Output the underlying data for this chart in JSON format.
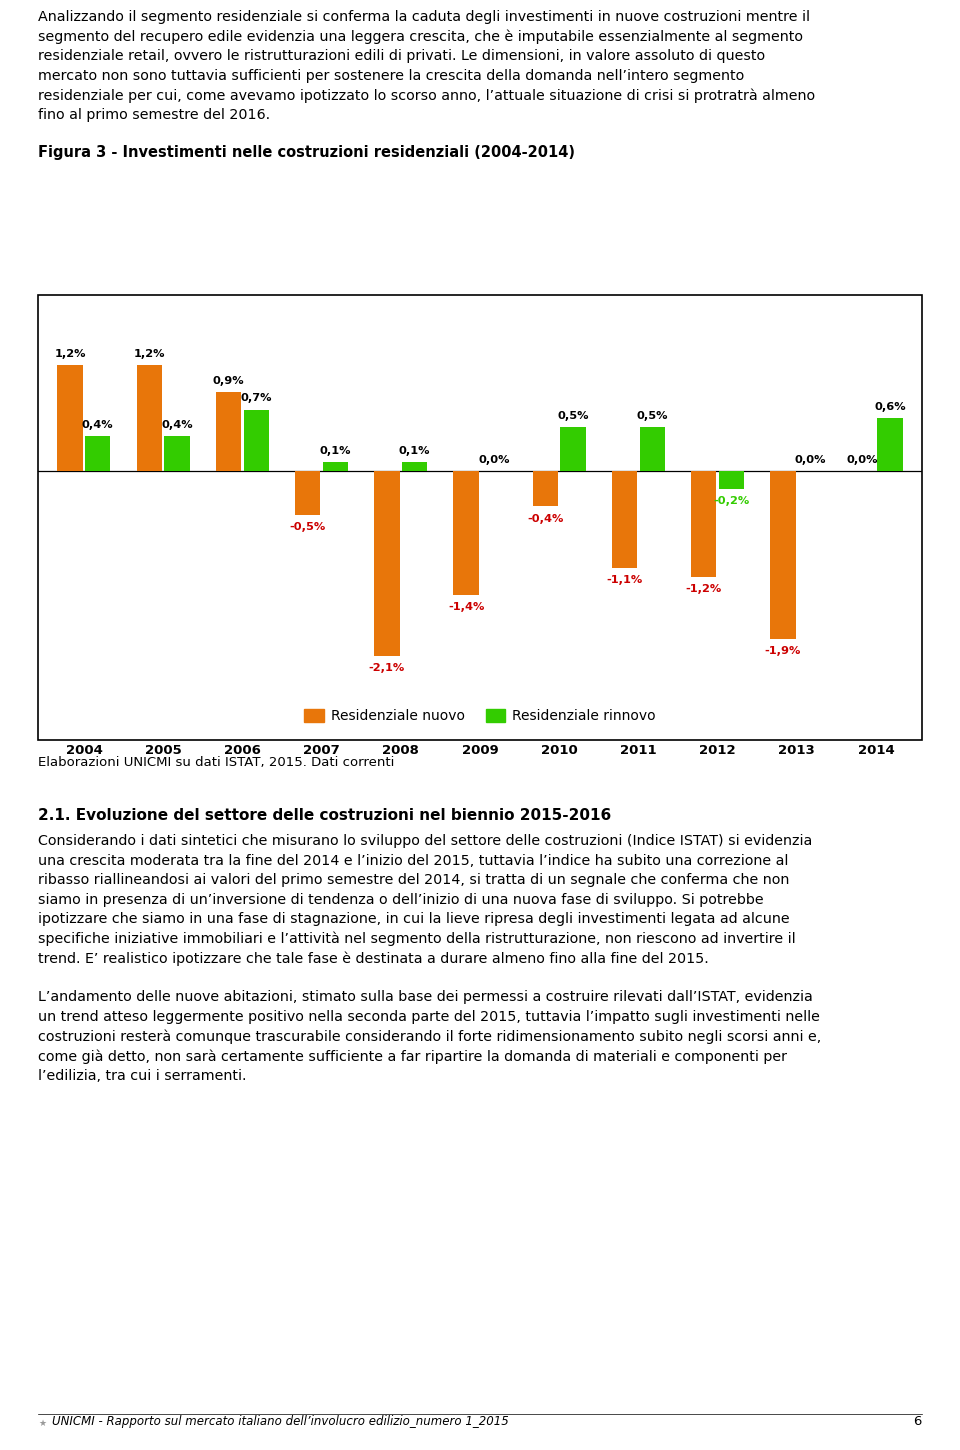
{
  "para1": "Analizzando il segmento residenziale si conferma la caduta degli investimenti in nuove costruzioni mentre il segmento del recupero edile evidenzia una leggera crescita, che è imputabile essenzialmente al segmento residenziale retail, ovvero le ristrutturazioni edili di privati. Le dimensioni, in valore assoluto di questo mercato non sono tuttavia sufficienti per sostenere la crescita della domanda nell’intero segmento residenziale per cui, come avevamo ipotizzato lo scorso anno, l’attuale situazione di crisi si protratrà almeno fino al primo semestre del 2016.",
  "figure_title": "Figura 3 - Investimenti nelle costruzioni residenziali (2004-2014)",
  "years": [
    "2004",
    "2005",
    "2006",
    "2007",
    "2008",
    "2009",
    "2010",
    "2011",
    "2012",
    "2013",
    "2014"
  ],
  "nuovo": [
    1.2,
    1.2,
    0.9,
    -0.5,
    -2.1,
    -1.4,
    -0.4,
    -1.1,
    -1.2,
    -1.9,
    0.0
  ],
  "rinnovo": [
    0.4,
    0.4,
    0.7,
    0.1,
    0.1,
    0.0,
    0.5,
    0.5,
    -0.2,
    0.0,
    0.6
  ],
  "nuovo_labels": [
    "1,2%",
    "1,2%",
    "0,9%",
    "-0,5%",
    "-2,1%",
    "-1,4%",
    "-0,4%",
    "-1,1%",
    "-1,2%",
    "-1,9%",
    "0,0%"
  ],
  "rinnovo_labels": [
    "0,4%",
    "0,4%",
    "0,7%",
    "0,1%",
    "0,1%",
    "0,0%",
    "0,5%",
    "0,5%",
    "-0,2%",
    "0,0%",
    "0,6%"
  ],
  "color_nuovo": "#E8760A",
  "color_rinnovo": "#33CC00",
  "color_neg_nuovo": "#CC0000",
  "color_neg_rinnovo": "#33CC00",
  "elaborazioni_note": "Elaborazioni UNICMI su dati ISTAT, 2015. Dati correnti",
  "section_title": "2.1. Evoluzione del settore delle costruzioni nel biennio 2015-2016",
  "para2": "Considerando i dati sintetici che misurano lo sviluppo del settore delle costruzioni (Indice ISTAT) si evidenzia una crescita moderata tra la fine del 2014 e l’inizio del 2015, tuttavia l’indice ha subito una correzione al ribasso riallineandosi ai valori del primo semestre del 2014, si tratta di un segnale che conferma che non siamo in presenza di un’inversione di tendenza o dell’inizio di una nuova fase di sviluppo. Si potrebbe ipotizzare che siamo in una fase di stagnazione, in cui la lieve ripresa degli investimenti legata ad alcune specifiche iniziative immobiliari e l’attività nel segmento della ristrutturazione, non riescono ad invertire il trend. E’ realistico ipotizzare che tale fase è destinata a durare almeno fino alla fine del 2015.",
  "para3": "L’andamento delle nuove abitazioni, stimato sulla base dei permessi a costruire rilevati dall’ISTAT, evidenzia un trend atteso leggermente positivo nella seconda parte del 2015, tuttavia l’impatto sugli investimenti nelle costruzioni resterà comunque trascurabile considerando il forte ridimensionamento subito negli scorsi anni e, come già detto, non sarà certamente sufficiente a far ripartire la domanda di materiali e componenti per l’edilizia, tra cui i serramenti.",
  "footer": "UNICMI - Rapporto sul mercato italiano dell’involucro edilizio_numero 1_2015",
  "page_num": "6",
  "background": "#ffffff",
  "para1_lines": [
    "Analizzando il segmento residenziale si conferma la caduta degli investimenti in nuove costruzioni mentre il",
    "segmento del recupero edile evidenzia una leggera crescita, che è imputabile essenzialmente al segmento",
    "residenziale retail, ovvero le ristrutturazioni edili di privati. Le dimensioni, in valore assoluto di questo",
    "mercato non sono tuttavia sufficienti per sostenere la crescita della domanda nell’intero segmento",
    "residenziale per cui, come avevamo ipotizzato lo scorso anno, l’attuale situazione di crisi si protratrà almeno",
    "fino al primo semestre del 2016."
  ],
  "para2_lines": [
    "Considerando i dati sintetici che misurano lo sviluppo del settore delle costruzioni (Indice ISTAT) si evidenzia",
    "una crescita moderata tra la fine del 2014 e l’inizio del 2015, tuttavia l’indice ha subito una correzione al",
    "ribasso riallineandosi ai valori del primo semestre del 2014, si tratta di un segnale che conferma che non",
    "siamo in presenza di un’inversione di tendenza o dell’inizio di una nuova fase di sviluppo. Si potrebbe",
    "ipotizzare che siamo in una fase di stagnazione, in cui la lieve ripresa degli investimenti legata ad alcune",
    "specifiche iniziative immobiliari e l’attività nel segmento della ristrutturazione, non riescono ad invertire il",
    "trend. E’ realistico ipotizzare che tale fase è destinata a durare almeno fino alla fine del 2015."
  ],
  "para3_lines": [
    "L’andamento delle nuove abitazioni, stimato sulla base dei permessi a costruire rilevati dall’ISTAT, evidenzia",
    "un trend atteso leggermente positivo nella seconda parte del 2015, tuttavia l’impatto sugli investimenti nelle",
    "costruzioni resterà comunque trascurabile considerando il forte ridimensionamento subito negli scorsi anni e,",
    "come già detto, non sarà certamente sufficiente a far ripartire la domanda di materiali e componenti per",
    "l’edilizia, tra cui i serramenti."
  ]
}
